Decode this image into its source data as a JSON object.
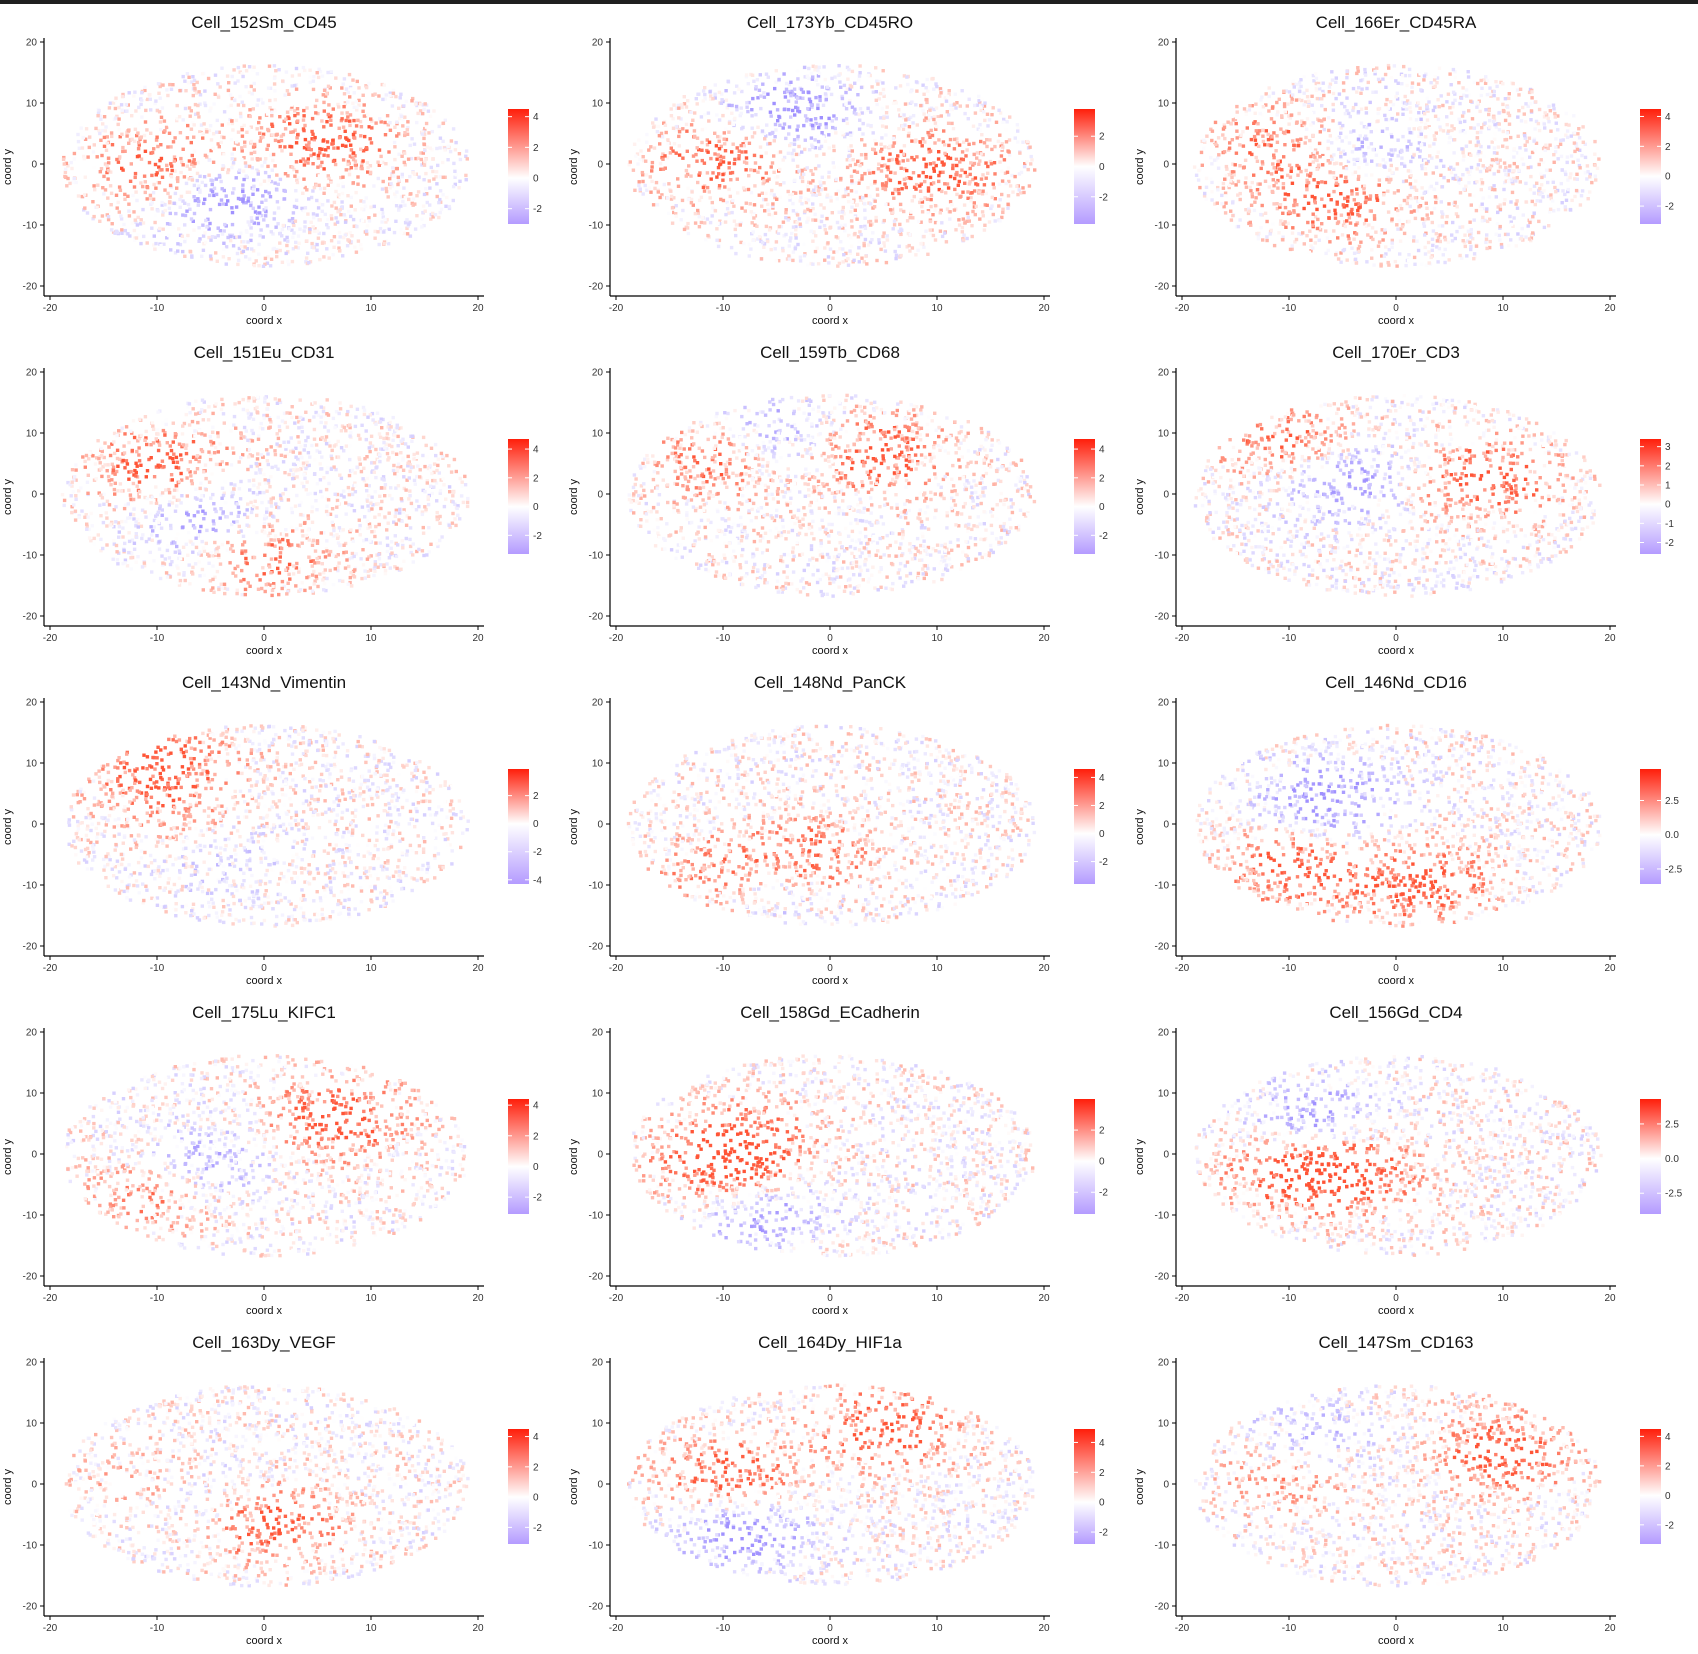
{
  "figure": {
    "layout": {
      "rows": 5,
      "cols": 3
    },
    "colors": {
      "low": "#5b2bff",
      "mid": "#ffffff",
      "high": "#ff1e0a",
      "axis": "#000000"
    }
  },
  "chart_data": [
    {
      "type": "scatter",
      "title": "Cell_152Sm_CD45",
      "xlabel": "coord x",
      "ylabel": "coord y",
      "xlim": [
        -20,
        20
      ],
      "ylim": [
        -20,
        20
      ],
      "xticks": [
        "-20",
        "-10",
        "0",
        "10",
        "20"
      ],
      "yticks": [
        "20",
        "10",
        "0",
        "-10",
        "-20"
      ],
      "grid": false,
      "legend_position": "right",
      "colorbar": {
        "min": -3,
        "max": 4.5,
        "ticks": [
          "4",
          "2",
          "0",
          "-2"
        ]
      }
    },
    {
      "type": "scatter",
      "title": "Cell_173Yb_CD45RO",
      "xlabel": "coord x",
      "ylabel": "coord y",
      "xlim": [
        -20,
        20
      ],
      "ylim": [
        -20,
        20
      ],
      "xticks": [
        "-20",
        "-10",
        "0",
        "10",
        "20"
      ],
      "yticks": [
        "20",
        "10",
        "0",
        "-10",
        "-20"
      ],
      "grid": false,
      "legend_position": "right",
      "colorbar": {
        "min": -3.8,
        "max": 3.8,
        "ticks": [
          "2",
          "0",
          "-2"
        ]
      }
    },
    {
      "type": "scatter",
      "title": "Cell_166Er_CD45RA",
      "xlabel": "coord x",
      "ylabel": "coord y",
      "xlim": [
        -20,
        20
      ],
      "ylim": [
        -20,
        20
      ],
      "xticks": [
        "-20",
        "-10",
        "0",
        "10",
        "20"
      ],
      "yticks": [
        "20",
        "10",
        "0",
        "-10",
        "-20"
      ],
      "grid": false,
      "legend_position": "right",
      "colorbar": {
        "min": -3.2,
        "max": 4.5,
        "ticks": [
          "4",
          "2",
          "0",
          "-2"
        ]
      }
    },
    {
      "type": "scatter",
      "title": "Cell_151Eu_CD31",
      "xlabel": "coord x",
      "ylabel": "coord y",
      "xlim": [
        -20,
        20
      ],
      "ylim": [
        -20,
        20
      ],
      "xticks": [
        "-20",
        "-10",
        "0",
        "10",
        "20"
      ],
      "yticks": [
        "20",
        "10",
        "0",
        "-10",
        "-20"
      ],
      "grid": false,
      "legend_position": "right",
      "colorbar": {
        "min": -3.3,
        "max": 4.7,
        "ticks": [
          "4",
          "2",
          "0",
          "-2"
        ]
      }
    },
    {
      "type": "scatter",
      "title": "Cell_159Tb_CD68",
      "xlabel": "coord x",
      "ylabel": "coord y",
      "xlim": [
        -20,
        20
      ],
      "ylim": [
        -20,
        20
      ],
      "xticks": [
        "-20",
        "-10",
        "0",
        "10",
        "20"
      ],
      "yticks": [
        "20",
        "10",
        "0",
        "-10",
        "-20"
      ],
      "grid": false,
      "legend_position": "right",
      "colorbar": {
        "min": -3.3,
        "max": 4.7,
        "ticks": [
          "4",
          "2",
          "0",
          "-2"
        ]
      }
    },
    {
      "type": "scatter",
      "title": "Cell_170Er_CD3",
      "xlabel": "coord x",
      "ylabel": "coord y",
      "xlim": [
        -20,
        20
      ],
      "ylim": [
        -20,
        20
      ],
      "xticks": [
        "-20",
        "-10",
        "0",
        "10",
        "20"
      ],
      "yticks": [
        "20",
        "10",
        "0",
        "-10",
        "-20"
      ],
      "grid": false,
      "legend_position": "right",
      "colorbar": {
        "min": -2.6,
        "max": 3.4,
        "ticks": [
          "3",
          "2",
          "1",
          "0",
          "-1",
          "-2"
        ]
      }
    },
    {
      "type": "scatter",
      "title": "Cell_143Nd_Vimentin",
      "xlabel": "coord x",
      "ylabel": "coord y",
      "xlim": [
        -20,
        20
      ],
      "ylim": [
        -20,
        20
      ],
      "xticks": [
        "-20",
        "-10",
        "0",
        "10",
        "20"
      ],
      "yticks": [
        "20",
        "10",
        "0",
        "-10",
        "-20"
      ],
      "grid": false,
      "legend_position": "right",
      "colorbar": {
        "min": -4.3,
        "max": 3.9,
        "ticks": [
          "2",
          "0",
          "-2",
          "-4"
        ]
      }
    },
    {
      "type": "scatter",
      "title": "Cell_148Nd_PanCK",
      "xlabel": "coord x",
      "ylabel": "coord y",
      "xlim": [
        -20,
        20
      ],
      "ylim": [
        -20,
        20
      ],
      "xticks": [
        "-20",
        "-10",
        "0",
        "10",
        "20"
      ],
      "yticks": [
        "20",
        "10",
        "0",
        "-10",
        "-20"
      ],
      "grid": false,
      "legend_position": "right",
      "colorbar": {
        "min": -3.6,
        "max": 4.6,
        "ticks": [
          "4",
          "2",
          "0",
          "-2"
        ]
      }
    },
    {
      "type": "scatter",
      "title": "Cell_146Nd_CD16",
      "xlabel": "coord x",
      "ylabel": "coord y",
      "xlim": [
        -20,
        20
      ],
      "ylim": [
        -20,
        20
      ],
      "xticks": [
        "-20",
        "-10",
        "0",
        "10",
        "20"
      ],
      "yticks": [
        "20",
        "10",
        "0",
        "-10",
        "-20"
      ],
      "grid": false,
      "legend_position": "right",
      "colorbar": {
        "min": -3.6,
        "max": 4.8,
        "ticks": [
          "2.5",
          "0.0",
          "-2.5"
        ]
      }
    },
    {
      "type": "scatter",
      "title": "Cell_175Lu_KIFC1",
      "xlabel": "coord x",
      "ylabel": "coord y",
      "xlim": [
        -20,
        20
      ],
      "ylim": [
        -20,
        20
      ],
      "xticks": [
        "-20",
        "-10",
        "0",
        "10",
        "20"
      ],
      "yticks": [
        "20",
        "10",
        "0",
        "-10",
        "-20"
      ],
      "grid": false,
      "legend_position": "right",
      "colorbar": {
        "min": -3.1,
        "max": 4.4,
        "ticks": [
          "4",
          "2",
          "0",
          "-2"
        ]
      }
    },
    {
      "type": "scatter",
      "title": "Cell_158Gd_ECadherin",
      "xlabel": "coord x",
      "ylabel": "coord y",
      "xlim": [
        -20,
        20
      ],
      "ylim": [
        -20,
        20
      ],
      "xticks": [
        "-20",
        "-10",
        "0",
        "10",
        "20"
      ],
      "yticks": [
        "20",
        "10",
        "0",
        "-10",
        "-20"
      ],
      "grid": false,
      "legend_position": "right",
      "colorbar": {
        "min": -3.4,
        "max": 4.0,
        "ticks": [
          "2",
          "0",
          "-2"
        ]
      }
    },
    {
      "type": "scatter",
      "title": "Cell_156Gd_CD4",
      "xlabel": "coord x",
      "ylabel": "coord y",
      "xlim": [
        -20,
        20
      ],
      "ylim": [
        -20,
        20
      ],
      "xticks": [
        "-20",
        "-10",
        "0",
        "10",
        "20"
      ],
      "yticks": [
        "20",
        "10",
        "0",
        "-10",
        "-20"
      ],
      "grid": false,
      "legend_position": "right",
      "colorbar": {
        "min": -4.0,
        "max": 4.3,
        "ticks": [
          "2.5",
          "0.0",
          "-2.5"
        ]
      }
    },
    {
      "type": "scatter",
      "title": "Cell_163Dy_VEGF",
      "xlabel": "coord x",
      "ylabel": "coord y",
      "xlim": [
        -20,
        20
      ],
      "ylim": [
        -20,
        20
      ],
      "xticks": [
        "-20",
        "-10",
        "0",
        "10",
        "20"
      ],
      "yticks": [
        "20",
        "10",
        "0",
        "-10",
        "-20"
      ],
      "grid": false,
      "legend_position": "right",
      "colorbar": {
        "min": -3.1,
        "max": 4.5,
        "ticks": [
          "4",
          "2",
          "0",
          "-2"
        ]
      }
    },
    {
      "type": "scatter",
      "title": "Cell_164Dy_HIF1a",
      "xlabel": "coord x",
      "ylabel": "coord y",
      "xlim": [
        -20,
        20
      ],
      "ylim": [
        -20,
        20
      ],
      "xticks": [
        "-20",
        "-10",
        "0",
        "10",
        "20"
      ],
      "yticks": [
        "20",
        "10",
        "0",
        "-10",
        "-20"
      ],
      "grid": false,
      "legend_position": "right",
      "colorbar": {
        "min": -2.8,
        "max": 4.9,
        "ticks": [
          "4",
          "2",
          "0",
          "-2"
        ]
      }
    },
    {
      "type": "scatter",
      "title": "Cell_147Sm_CD163",
      "xlabel": "coord x",
      "ylabel": "coord y",
      "xlim": [
        -20,
        20
      ],
      "ylim": [
        -20,
        20
      ],
      "xticks": [
        "-20",
        "-10",
        "0",
        "10",
        "20"
      ],
      "yticks": [
        "20",
        "10",
        "0",
        "-10",
        "-20"
      ],
      "grid": false,
      "legend_position": "right",
      "colorbar": {
        "min": -3.3,
        "max": 4.5,
        "ticks": [
          "4",
          "2",
          "0",
          "-2"
        ]
      }
    }
  ]
}
